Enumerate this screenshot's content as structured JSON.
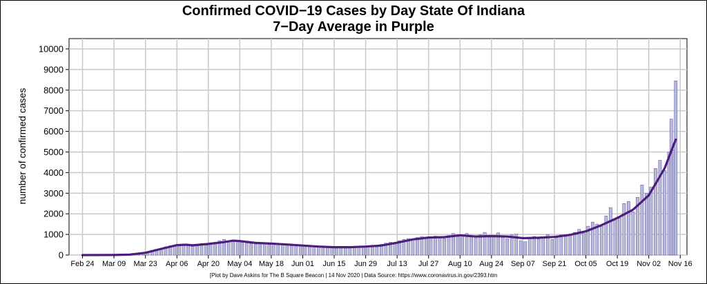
{
  "chart_data": {
    "type": "bar",
    "title": "Confirmed COVID−19 Cases by Day State Of Indiana",
    "subtitle": "7−Day Average in Purple",
    "ylabel": "number of confirmed cases",
    "xlabel": "",
    "footer": "[Plot by Dave Askins for The B Square Beacon | 14 Nov 2020 | Data Source: https://www.coronavirus.in.gov/2393.htm",
    "ylim": [
      0,
      10500
    ],
    "yticks": [
      0,
      1000,
      2000,
      3000,
      4000,
      5000,
      6000,
      7000,
      8000,
      9000,
      10000
    ],
    "x_start": "2020-02-18",
    "x_end": "2020-11-19",
    "xticks": [
      {
        "date": "2020-02-24",
        "label": "Feb 24"
      },
      {
        "date": "2020-03-09",
        "label": "Mar 09"
      },
      {
        "date": "2020-03-23",
        "label": "Mar 23"
      },
      {
        "date": "2020-04-06",
        "label": "Apr 06"
      },
      {
        "date": "2020-04-20",
        "label": "Apr 20"
      },
      {
        "date": "2020-05-04",
        "label": "May 04"
      },
      {
        "date": "2020-05-18",
        "label": "May 18"
      },
      {
        "date": "2020-06-01",
        "label": "Jun 01"
      },
      {
        "date": "2020-06-15",
        "label": "Jun 15"
      },
      {
        "date": "2020-06-29",
        "label": "Jun 29"
      },
      {
        "date": "2020-07-13",
        "label": "Jul 13"
      },
      {
        "date": "2020-07-27",
        "label": "Jul 27"
      },
      {
        "date": "2020-08-10",
        "label": "Aug 10"
      },
      {
        "date": "2020-08-24",
        "label": "Aug 24"
      },
      {
        "date": "2020-09-07",
        "label": "Sep 07"
      },
      {
        "date": "2020-09-21",
        "label": "Sep 21"
      },
      {
        "date": "2020-10-05",
        "label": "Oct 05"
      },
      {
        "date": "2020-10-19",
        "label": "Oct 19"
      },
      {
        "date": "2020-11-02",
        "label": "Nov 02"
      },
      {
        "date": "2020-11-16",
        "label": "Nov 16"
      }
    ],
    "grid": true,
    "series": [
      {
        "kind": "bar",
        "color": "#b9b9e0",
        "edge_color": "#55558a",
        "points": [
          [
            "2020-03-06",
            5
          ],
          [
            "2020-03-08",
            8
          ],
          [
            "2020-03-10",
            10
          ],
          [
            "2020-03-12",
            12
          ],
          [
            "2020-03-14",
            15
          ],
          [
            "2020-03-16",
            20
          ],
          [
            "2020-03-18",
            30
          ],
          [
            "2020-03-20",
            60
          ],
          [
            "2020-03-22",
            100
          ],
          [
            "2020-03-24",
            160
          ],
          [
            "2020-03-26",
            230
          ],
          [
            "2020-03-28",
            280
          ],
          [
            "2020-03-30",
            320
          ],
          [
            "2020-04-01",
            400
          ],
          [
            "2020-04-03",
            450
          ],
          [
            "2020-04-05",
            430
          ],
          [
            "2020-04-07",
            500
          ],
          [
            "2020-04-09",
            470
          ],
          [
            "2020-04-11",
            460
          ],
          [
            "2020-04-13",
            420
          ],
          [
            "2020-04-15",
            520
          ],
          [
            "2020-04-17",
            560
          ],
          [
            "2020-04-19",
            480
          ],
          [
            "2020-04-21",
            600
          ],
          [
            "2020-04-23",
            620
          ],
          [
            "2020-04-25",
            700
          ],
          [
            "2020-04-27",
            760
          ],
          [
            "2020-04-29",
            680
          ],
          [
            "2020-05-01",
            650
          ],
          [
            "2020-05-03",
            720
          ],
          [
            "2020-05-05",
            620
          ],
          [
            "2020-05-07",
            580
          ],
          [
            "2020-05-09",
            560
          ],
          [
            "2020-05-11",
            520
          ],
          [
            "2020-05-13",
            600
          ],
          [
            "2020-05-15",
            540
          ],
          [
            "2020-05-17",
            510
          ],
          [
            "2020-05-19",
            580
          ],
          [
            "2020-05-21",
            540
          ],
          [
            "2020-05-23",
            500
          ],
          [
            "2020-05-25",
            470
          ],
          [
            "2020-05-27",
            450
          ],
          [
            "2020-05-29",
            480
          ],
          [
            "2020-05-31",
            430
          ],
          [
            "2020-06-02",
            450
          ],
          [
            "2020-06-04",
            430
          ],
          [
            "2020-06-06",
            420
          ],
          [
            "2020-06-08",
            380
          ],
          [
            "2020-06-10",
            400
          ],
          [
            "2020-06-12",
            380
          ],
          [
            "2020-06-14",
            360
          ],
          [
            "2020-06-16",
            420
          ],
          [
            "2020-06-18",
            380
          ],
          [
            "2020-06-20",
            350
          ],
          [
            "2020-06-22",
            360
          ],
          [
            "2020-06-24",
            400
          ],
          [
            "2020-06-26",
            420
          ],
          [
            "2020-06-28",
            380
          ],
          [
            "2020-06-30",
            450
          ],
          [
            "2020-07-02",
            480
          ],
          [
            "2020-07-04",
            400
          ],
          [
            "2020-07-06",
            520
          ],
          [
            "2020-07-08",
            580
          ],
          [
            "2020-07-10",
            620
          ],
          [
            "2020-07-12",
            600
          ],
          [
            "2020-07-14",
            700
          ],
          [
            "2020-07-16",
            760
          ],
          [
            "2020-07-18",
            800
          ],
          [
            "2020-07-20",
            780
          ],
          [
            "2020-07-22",
            850
          ],
          [
            "2020-07-24",
            900
          ],
          [
            "2020-07-26",
            820
          ],
          [
            "2020-07-28",
            880
          ],
          [
            "2020-07-30",
            920
          ],
          [
            "2020-08-01",
            860
          ],
          [
            "2020-08-03",
            800
          ],
          [
            "2020-08-05",
            950
          ],
          [
            "2020-08-07",
            1050
          ],
          [
            "2020-08-09",
            900
          ],
          [
            "2020-08-11",
            980
          ],
          [
            "2020-08-13",
            1050
          ],
          [
            "2020-08-15",
            900
          ],
          [
            "2020-08-17",
            820
          ],
          [
            "2020-08-19",
            980
          ],
          [
            "2020-08-21",
            1100
          ],
          [
            "2020-08-23",
            880
          ],
          [
            "2020-08-25",
            950
          ],
          [
            "2020-08-27",
            1080
          ],
          [
            "2020-08-29",
            920
          ],
          [
            "2020-08-31",
            800
          ],
          [
            "2020-09-02",
            1000
          ],
          [
            "2020-09-04",
            1020
          ],
          [
            "2020-09-06",
            700
          ],
          [
            "2020-09-08",
            650
          ],
          [
            "2020-09-10",
            800
          ],
          [
            "2020-09-12",
            900
          ],
          [
            "2020-09-14",
            780
          ],
          [
            "2020-09-16",
            880
          ],
          [
            "2020-09-18",
            1000
          ],
          [
            "2020-09-20",
            760
          ],
          [
            "2020-09-22",
            850
          ],
          [
            "2020-09-24",
            980
          ],
          [
            "2020-09-26",
            900
          ],
          [
            "2020-09-28",
            950
          ],
          [
            "2020-09-30",
            1100
          ],
          [
            "2020-10-02",
            1250
          ],
          [
            "2020-10-04",
            1050
          ],
          [
            "2020-10-06",
            1400
          ],
          [
            "2020-10-08",
            1600
          ],
          [
            "2020-10-10",
            1500
          ],
          [
            "2020-10-12",
            1400
          ],
          [
            "2020-10-14",
            1900
          ],
          [
            "2020-10-16",
            2300
          ],
          [
            "2020-10-18",
            1700
          ],
          [
            "2020-10-20",
            1800
          ],
          [
            "2020-10-22",
            2500
          ],
          [
            "2020-10-24",
            2600
          ],
          [
            "2020-10-26",
            2100
          ],
          [
            "2020-10-28",
            2800
          ],
          [
            "2020-10-30",
            3400
          ],
          [
            "2020-11-01",
            3000
          ],
          [
            "2020-11-03",
            3300
          ],
          [
            "2020-11-05",
            4200
          ],
          [
            "2020-11-07",
            4600
          ],
          [
            "2020-11-09",
            4100
          ],
          [
            "2020-11-11",
            5000
          ],
          [
            "2020-11-12",
            6600
          ],
          [
            "2020-11-13",
            5100
          ],
          [
            "2020-11-14",
            8450
          ]
        ]
      },
      {
        "kind": "line",
        "color": "#4b1e7e",
        "points": [
          [
            "2020-02-24",
            0
          ],
          [
            "2020-03-09",
            5
          ],
          [
            "2020-03-16",
            20
          ],
          [
            "2020-03-23",
            110
          ],
          [
            "2020-03-30",
            300
          ],
          [
            "2020-04-06",
            480
          ],
          [
            "2020-04-10",
            500
          ],
          [
            "2020-04-13",
            470
          ],
          [
            "2020-04-20",
            540
          ],
          [
            "2020-04-27",
            630
          ],
          [
            "2020-05-01",
            700
          ],
          [
            "2020-05-04",
            680
          ],
          [
            "2020-05-11",
            590
          ],
          [
            "2020-05-18",
            560
          ],
          [
            "2020-05-25",
            510
          ],
          [
            "2020-06-01",
            460
          ],
          [
            "2020-06-08",
            410
          ],
          [
            "2020-06-15",
            380
          ],
          [
            "2020-06-22",
            380
          ],
          [
            "2020-06-29",
            410
          ],
          [
            "2020-07-06",
            460
          ],
          [
            "2020-07-13",
            600
          ],
          [
            "2020-07-20",
            760
          ],
          [
            "2020-07-27",
            850
          ],
          [
            "2020-08-03",
            870
          ],
          [
            "2020-08-10",
            960
          ],
          [
            "2020-08-17",
            900
          ],
          [
            "2020-08-24",
            920
          ],
          [
            "2020-08-31",
            900
          ],
          [
            "2020-09-07",
            820
          ],
          [
            "2020-09-14",
            840
          ],
          [
            "2020-09-21",
            880
          ],
          [
            "2020-09-28",
            980
          ],
          [
            "2020-10-05",
            1150
          ],
          [
            "2020-10-12",
            1450
          ],
          [
            "2020-10-19",
            1800
          ],
          [
            "2020-10-26",
            2200
          ],
          [
            "2020-11-02",
            2900
          ],
          [
            "2020-11-09",
            4200
          ],
          [
            "2020-11-14",
            5600
          ]
        ]
      }
    ]
  }
}
